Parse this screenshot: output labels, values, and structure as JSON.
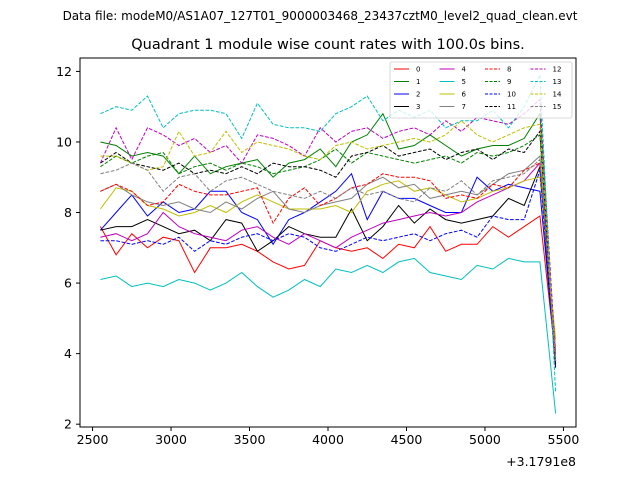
{
  "figure": {
    "suptitle": "Data file: modeM0/AS1A07_127T01_9000003468_23437cztM0_level2_quad_clean.evt"
  },
  "chart_data": {
    "type": "line",
    "title": "Quadrant 1 module wise count rates with 100.0s bins.",
    "xlabel": "",
    "ylabel": "",
    "x_offset_label": "+3.1791e8",
    "xlim": [
      2420,
      5580
    ],
    "ylim": [
      1.92,
      12.38
    ],
    "xticks": [
      2500,
      3000,
      3500,
      4000,
      4500,
      5000,
      5500
    ],
    "xtick_labels": [
      "2500",
      "3000",
      "3500",
      "4000",
      "4500",
      "5000",
      "5500"
    ],
    "yticks": [
      2,
      4,
      6,
      8,
      10,
      12
    ],
    "ytick_labels": [
      "2",
      "4",
      "6",
      "8",
      "10",
      "12"
    ],
    "grid": false,
    "legend": {
      "placement": "top-right",
      "ncol": 4
    },
    "x": [
      2550,
      2650,
      2750,
      2850,
      2950,
      3050,
      3150,
      3250,
      3350,
      3450,
      3550,
      3650,
      3750,
      3850,
      3950,
      4050,
      4150,
      4250,
      4350,
      4450,
      4550,
      4650,
      4750,
      4850,
      4950,
      5050,
      5150,
      5250,
      5350,
      5450
    ],
    "series": [
      {
        "name": "0",
        "color": "#ff0000",
        "dash": "solid",
        "values": [
          7.6,
          6.8,
          7.4,
          7.0,
          7.3,
          7.2,
          6.3,
          7.0,
          7.0,
          7.1,
          6.9,
          6.6,
          6.4,
          6.5,
          7.2,
          7.0,
          6.9,
          7.0,
          6.7,
          7.1,
          7.0,
          7.6,
          6.9,
          7.1,
          7.1,
          7.6,
          7.3,
          7.6,
          7.9,
          3.9
        ]
      },
      {
        "name": "1",
        "color": "#008000",
        "dash": "solid",
        "values": [
          10.0,
          9.9,
          9.6,
          9.7,
          9.6,
          9.1,
          9.6,
          9.1,
          9.3,
          9.4,
          9.5,
          9.0,
          9.4,
          9.5,
          9.8,
          9.3,
          10.0,
          10.2,
          10.8,
          9.8,
          9.9,
          10.2,
          9.9,
          9.6,
          9.8,
          9.9,
          9.9,
          10.1,
          10.8,
          3.7
        ]
      },
      {
        "name": "2",
        "color": "#0000ff",
        "dash": "solid",
        "values": [
          7.5,
          8.0,
          8.5,
          7.9,
          8.3,
          8.0,
          8.1,
          8.6,
          8.6,
          8.0,
          7.8,
          7.1,
          7.8,
          8.0,
          8.3,
          8.6,
          9.1,
          7.8,
          8.6,
          8.4,
          8.4,
          8.2,
          8.0,
          8.0,
          9.0,
          8.6,
          8.8,
          8.7,
          8.6,
          3.8
        ]
      },
      {
        "name": "3",
        "color": "#000000",
        "dash": "solid",
        "values": [
          7.5,
          7.6,
          7.6,
          7.8,
          7.6,
          7.4,
          7.5,
          7.2,
          7.8,
          7.7,
          6.9,
          7.2,
          7.6,
          7.4,
          7.3,
          7.3,
          8.1,
          7.2,
          7.6,
          8.2,
          7.7,
          8.1,
          7.8,
          7.7,
          7.8,
          7.9,
          8.4,
          8.2,
          9.3,
          3.6
        ]
      },
      {
        "name": "4",
        "color": "#bf00bf",
        "dash": "solid",
        "values": [
          7.3,
          7.4,
          7.2,
          7.4,
          8.0,
          7.6,
          7.4,
          7.3,
          7.2,
          7.5,
          7.6,
          7.3,
          7.1,
          7.4,
          7.2,
          7.0,
          7.3,
          7.5,
          7.7,
          7.8,
          7.9,
          8.0,
          7.9,
          8.0,
          8.3,
          8.5,
          8.7,
          8.9,
          9.4,
          4.0
        ]
      },
      {
        "name": "5",
        "color": "#00bfbf",
        "dash": "solid",
        "values": [
          6.1,
          6.2,
          5.9,
          6.0,
          5.9,
          6.1,
          6.0,
          5.8,
          6.0,
          6.3,
          5.9,
          5.6,
          5.8,
          6.1,
          5.9,
          6.4,
          6.3,
          6.5,
          6.3,
          6.6,
          6.7,
          6.3,
          6.2,
          6.1,
          6.5,
          6.4,
          6.7,
          6.6,
          6.6,
          2.3
        ]
      },
      {
        "name": "6",
        "color": "#bfbf00",
        "dash": "solid",
        "values": [
          8.1,
          8.7,
          8.6,
          8.2,
          8.1,
          7.9,
          8.0,
          8.2,
          8.0,
          8.3,
          8.5,
          8.3,
          8.1,
          8.1,
          8.1,
          8.2,
          8.0,
          8.6,
          8.8,
          8.9,
          8.6,
          8.7,
          8.5,
          8.3,
          8.4,
          8.6,
          8.7,
          8.9,
          9.0,
          4.4
        ]
      },
      {
        "name": "7",
        "color": "#808080",
        "dash": "solid",
        "values": [
          8.6,
          8.8,
          8.5,
          8.3,
          8.2,
          8.3,
          8.1,
          8.0,
          8.3,
          8.1,
          8.4,
          8.6,
          8.1,
          8.0,
          8.2,
          8.3,
          8.4,
          8.8,
          9.0,
          8.7,
          8.8,
          8.4,
          8.5,
          8.6,
          8.5,
          8.8,
          9.1,
          9.2,
          9.6,
          3.9
        ]
      },
      {
        "name": "8",
        "color": "#ff0000",
        "dash": "dashed",
        "values": [
          8.6,
          8.8,
          8.6,
          8.2,
          8.3,
          8.8,
          8.6,
          8.5,
          8.5,
          8.6,
          8.7,
          7.7,
          8.4,
          8.7,
          8.2,
          8.4,
          8.7,
          8.8,
          9.1,
          9.0,
          9.0,
          8.9,
          8.4,
          8.5,
          8.4,
          8.8,
          8.7,
          9.2,
          9.4,
          4.1
        ]
      },
      {
        "name": "9",
        "color": "#008000",
        "dash": "dashed",
        "values": [
          9.3,
          9.6,
          9.4,
          9.6,
          9.7,
          9.1,
          9.3,
          9.4,
          9.2,
          9.4,
          9.3,
          9.1,
          9.2,
          9.3,
          9.5,
          9.8,
          9.4,
          9.7,
          9.6,
          9.5,
          9.4,
          9.5,
          9.6,
          9.4,
          9.7,
          9.6,
          9.7,
          9.9,
          10.2,
          3.8
        ]
      },
      {
        "name": "10",
        "color": "#0000ff",
        "dash": "dashed",
        "values": [
          7.2,
          7.2,
          7.1,
          7.2,
          7.1,
          7.3,
          6.9,
          7.2,
          7.1,
          7.3,
          7.4,
          7.2,
          7.4,
          7.3,
          7.0,
          6.9,
          7.1,
          7.3,
          7.2,
          7.3,
          7.4,
          7.2,
          7.4,
          7.5,
          7.3,
          7.9,
          7.8,
          7.8,
          9.2,
          3.6
        ]
      },
      {
        "name": "11",
        "color": "#000000",
        "dash": "dashed",
        "values": [
          9.4,
          9.7,
          9.4,
          9.3,
          9.2,
          9.4,
          9.1,
          9.2,
          9.1,
          9.3,
          9.1,
          9.4,
          9.3,
          9.3,
          9.2,
          9.0,
          9.6,
          9.7,
          9.9,
          9.6,
          9.7,
          9.8,
          9.5,
          9.7,
          9.8,
          9.5,
          9.8,
          9.7,
          10.3,
          3.7
        ]
      },
      {
        "name": "12",
        "color": "#bf00bf",
        "dash": "dashed",
        "values": [
          9.4,
          10.4,
          9.5,
          10.4,
          10.2,
          9.9,
          10.1,
          9.7,
          9.9,
          9.4,
          10.2,
          10.1,
          9.9,
          9.6,
          10.4,
          10.0,
          10.3,
          10.4,
          10.1,
          10.3,
          10.4,
          10.2,
          10.6,
          10.3,
          10.7,
          10.6,
          10.5,
          10.8,
          11.2,
          3.9
        ]
      },
      {
        "name": "13",
        "color": "#00bfbf",
        "dash": "dashed",
        "values": [
          10.8,
          11.0,
          10.9,
          11.3,
          10.4,
          10.8,
          10.9,
          10.9,
          10.8,
          10.1,
          11.1,
          10.5,
          10.4,
          10.4,
          10.3,
          10.8,
          11.0,
          11.3,
          10.6,
          10.9,
          10.7,
          10.9,
          10.4,
          10.6,
          10.6,
          10.9,
          10.4,
          11.0,
          11.9,
          2.9
        ]
      },
      {
        "name": "14",
        "color": "#bfbf00",
        "dash": "dashed",
        "values": [
          9.6,
          9.6,
          9.4,
          9.2,
          9.3,
          10.3,
          9.6,
          9.7,
          10.3,
          9.7,
          10.0,
          9.9,
          9.8,
          9.6,
          9.5,
          9.9,
          10.0,
          9.8,
          9.9,
          10.0,
          10.1,
          10.0,
          10.2,
          10.6,
          10.2,
          10.0,
          10.2,
          10.4,
          10.5,
          3.8
        ]
      },
      {
        "name": "15",
        "color": "#808080",
        "dash": "dashed",
        "values": [
          9.1,
          9.2,
          9.4,
          9.2,
          8.6,
          9.0,
          9.1,
          8.6,
          8.9,
          9.0,
          8.8,
          8.6,
          8.5,
          8.4,
          8.6,
          8.4,
          8.7,
          8.5,
          8.6,
          8.4,
          8.3,
          8.7,
          8.6,
          8.9,
          8.5,
          8.9,
          9.0,
          9.1,
          9.5,
          3.8
        ]
      }
    ]
  }
}
